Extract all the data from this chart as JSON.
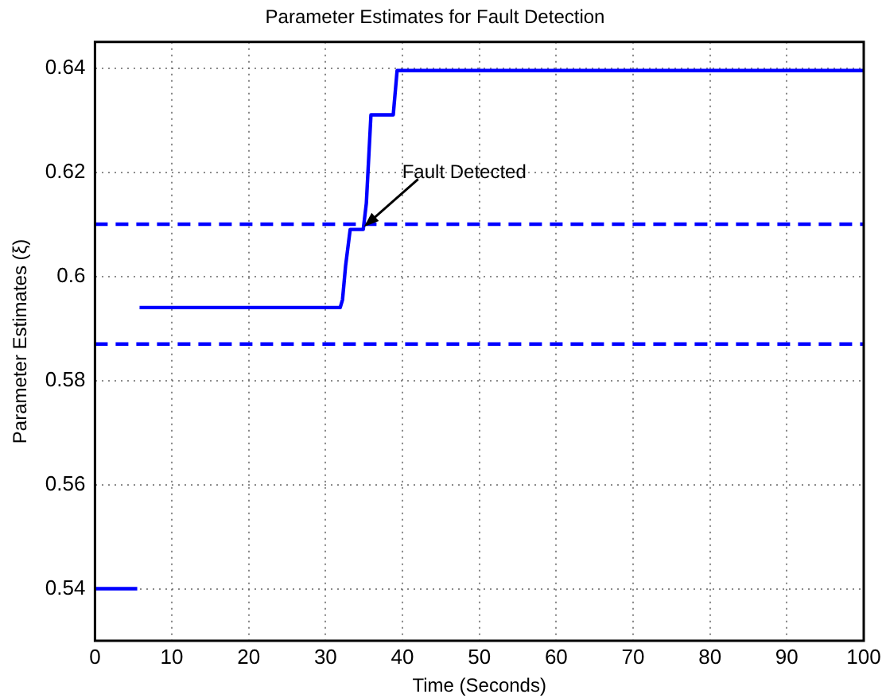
{
  "chart_data": {
    "type": "line",
    "title": "Parameter Estimates for Fault Detection",
    "xlabel": "Time (Seconds)",
    "ylabel": "Parameter Estimates (ξ)",
    "series": [
      {
        "color": "#0000ff",
        "x": [
          0,
          5.5,
          5.6,
          5.8,
          31.9,
          32.2,
          32.6,
          33.2,
          34.9,
          35.3,
          35.9,
          38.8,
          39.3,
          100
        ],
        "values": [
          0.54,
          0.54,
          null,
          0.594,
          0.594,
          0.5955,
          0.602,
          0.609,
          0.609,
          0.614,
          0.631,
          0.631,
          0.6395,
          0.6395
        ]
      }
    ],
    "ref_lines": [
      {
        "axis": "y",
        "value": 0.61,
        "color": "#0000ff",
        "line_style": "dashed"
      },
      {
        "axis": "y",
        "value": 0.587,
        "color": "#0000ff",
        "line_style": "dashed"
      }
    ],
    "annotations": [
      {
        "text": "Fault Detected",
        "x": 35,
        "y": 0.6095
      }
    ],
    "xlim": [
      0,
      100
    ],
    "xticks": [
      0,
      10,
      20,
      30,
      40,
      50,
      60,
      70,
      80,
      90,
      100
    ],
    "ylim": [
      0.53,
      0.645
    ],
    "yticks": [
      0.54,
      0.56,
      0.58,
      0.6,
      0.62,
      0.64
    ],
    "grid": true,
    "legend": false,
    "marker": "none",
    "line_style": "solid"
  }
}
